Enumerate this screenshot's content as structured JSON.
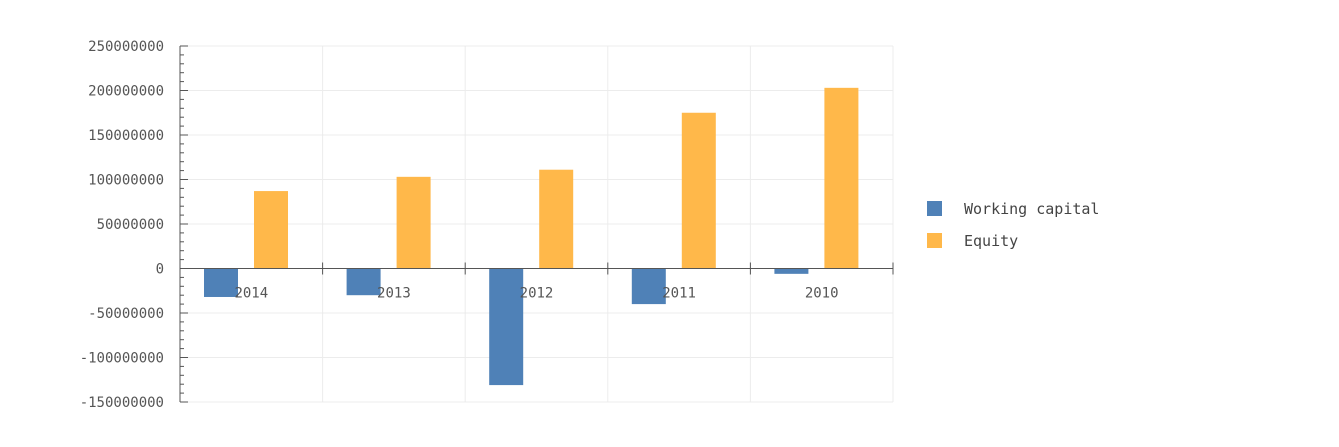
{
  "chart_data": {
    "type": "bar",
    "categories": [
      "2014",
      "2013",
      "2012",
      "2011",
      "2010"
    ],
    "series": [
      {
        "name": "Working capital",
        "color": "#4f81b7",
        "values": [
          -32000000,
          -30000000,
          -131000000,
          -40000000,
          -6000000
        ]
      },
      {
        "name": "Equity",
        "color": "#ffb84a",
        "values": [
          87000000,
          103000000,
          111000000,
          175000000,
          203000000
        ]
      }
    ],
    "ylim": [
      -150000000,
      250000000
    ],
    "y_ticks": [
      "250000000",
      "200000000",
      "150000000",
      "100000000",
      "50000000",
      "0",
      "-50000000",
      "-100000000",
      "-150000000"
    ],
    "grid": true,
    "legend_position": "right"
  }
}
